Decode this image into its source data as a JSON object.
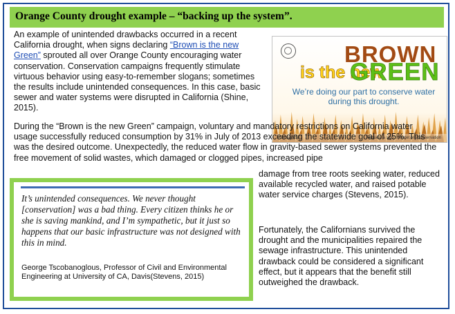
{
  "title": "Orange County drought example – “backing up the system”.",
  "paragraph1": {
    "before_link": "An example of unintended drawbacks occurred in a recent California drought, when signs declaring ",
    "link_text": "“Brown is the new Green”",
    "after_link": " sprouted all over Orange County encouraging water conservation. Conservation campaigns frequently stimulate virtuous behavior using easy-to-remember slogans; sometimes the results include unintended consequences. In this case, basic sewer and water systems were disrupted in California (Shine, 2015)."
  },
  "paragraph2": "During the “Brown is the new Green” campaign, voluntary and mandatory restrictions on California water usage successfully reduced consumption by 31% in July of 2013 exceeding the statewide goal of 25%. This was the desired outcome. Unexpectedly, the reduced water flow in gravity-based sewer systems prevented the free movement of solid wastes, which damaged or clogged pipes, increased pipe",
  "paragraph2_continued": "damage from tree roots seeking water, reduced available recycled water, and raised potable water service charges (Stevens, 2015).",
  "paragraph3": "Fortunately, the Californians survived the drought and the municipalities repaired the sewage infrastructure. This unintended drawback could be considered a significant effect, but it appears that the benefit still outweighed the drawback.",
  "poster": {
    "word_brown": "BROWN",
    "word_is_the_new": "is the new",
    "word_green": "GREEN",
    "tagline": "We’re doing our part to conserve water during this drought.",
    "social": "#DroughtSF",
    "request": "Request a sign: sfwater.org/conservation",
    "colors": {
      "brown": "#a24a13",
      "yellow": "#ffd21a",
      "green": "#5cbf17",
      "tagline": "#2f6fa3"
    }
  },
  "quote": {
    "text": "It’s unintended consequences. We never thought [conservation] was a bad thing. Every citizen thinks he or she is saving mankind, and I’m sympathetic, but it just so happens that our basic infrastructure was not designed with this in mind.",
    "attribution": "George Tscobanoglous, Professor of Civil and Environmental Engineering at University of CA, Davis(Stevens, 2015)"
  },
  "colors": {
    "accent_green": "#8fd14f",
    "frame_blue": "#1f4e9a",
    "link": "#1f4eb5"
  }
}
